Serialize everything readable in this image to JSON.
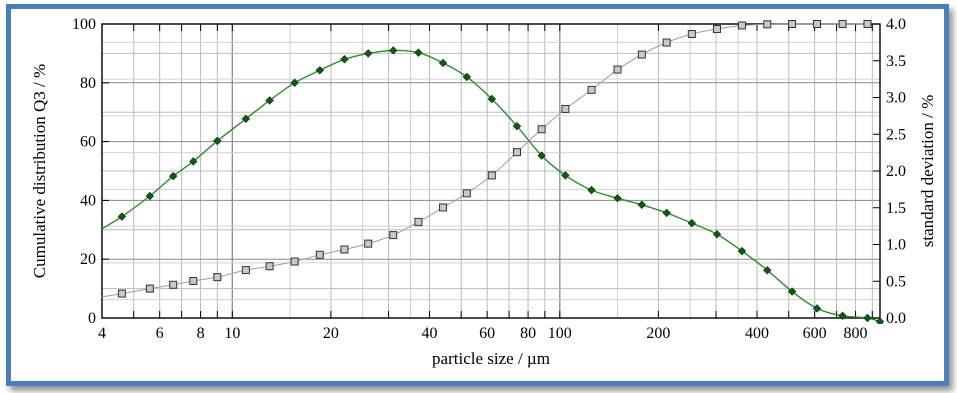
{
  "chart_data": {
    "type": "line",
    "xlabel": "particle size / µm",
    "ylabel_left": "Cumulative distribution Q3 / %",
    "ylabel_right": "standard deviation / %",
    "x_scale": "log",
    "xlim": [
      4,
      950
    ],
    "ylim_left": [
      0,
      100
    ],
    "ylim_right": [
      0.0,
      4.0
    ],
    "grid": true,
    "x_ticks": [
      4,
      6,
      8,
      10,
      20,
      40,
      60,
      80,
      100,
      200,
      400,
      600,
      800
    ],
    "x_tick_labels": [
      "4",
      "6",
      "8",
      "10",
      "20",
      "40",
      "60",
      "80",
      "100",
      "200",
      "400",
      "600",
      "800"
    ],
    "y_left_ticks": [
      0,
      20,
      40,
      60,
      80,
      100
    ],
    "y_left_tick_labels": [
      "0",
      "20",
      "40",
      "60",
      "80",
      "100"
    ],
    "y_right_ticks": [
      0.0,
      0.5,
      1.0,
      1.5,
      2.0,
      2.5,
      3.0,
      3.5,
      4.0
    ],
    "y_right_tick_labels": [
      "0.0",
      "0.5",
      "1.0",
      "1.5",
      "2.0",
      "2.5",
      "3.0",
      "3.5",
      "4.0"
    ],
    "series": [
      {
        "axis": "left",
        "marker": "square",
        "color": "#9e9e9e",
        "marker_fill": "#c8c8c8",
        "x": [
          4.6,
          5.6,
          6.6,
          7.6,
          9,
          11,
          13,
          15.5,
          18.5,
          22,
          26,
          31,
          37,
          44,
          52,
          62,
          74,
          88,
          104,
          125,
          150,
          178,
          212,
          253,
          302,
          360,
          430,
          512,
          610,
          730,
          870
        ],
        "y": [
          8.3,
          10.0,
          11.3,
          12.6,
          13.9,
          16.3,
          17.6,
          19.2,
          21.5,
          23.3,
          25.3,
          28.2,
          32.7,
          37.6,
          42.4,
          48.5,
          56.4,
          64.2,
          71.1,
          77.6,
          84.5,
          89.6,
          93.7,
          96.6,
          98.3,
          99.5,
          99.9,
          100,
          100,
          100,
          100
        ]
      },
      {
        "axis": "right",
        "marker": "diamond",
        "color": "#2e8b2e",
        "marker_fill": "#155515",
        "x": [
          4.6,
          5.6,
          6.6,
          7.6,
          9,
          11,
          13,
          15.5,
          18.5,
          22,
          26,
          31,
          37,
          44,
          52,
          62,
          74,
          88,
          104,
          125,
          150,
          178,
          212,
          253,
          302,
          360,
          430,
          512,
          610,
          730,
          870,
          950
        ],
        "y": [
          1.38,
          1.66,
          1.93,
          2.13,
          2.41,
          2.71,
          2.96,
          3.2,
          3.37,
          3.52,
          3.6,
          3.64,
          3.61,
          3.47,
          3.28,
          2.98,
          2.61,
          2.21,
          1.94,
          1.74,
          1.63,
          1.54,
          1.43,
          1.29,
          1.14,
          0.91,
          0.65,
          0.36,
          0.13,
          0.03,
          0.0,
          -0.05
        ]
      }
    ]
  }
}
